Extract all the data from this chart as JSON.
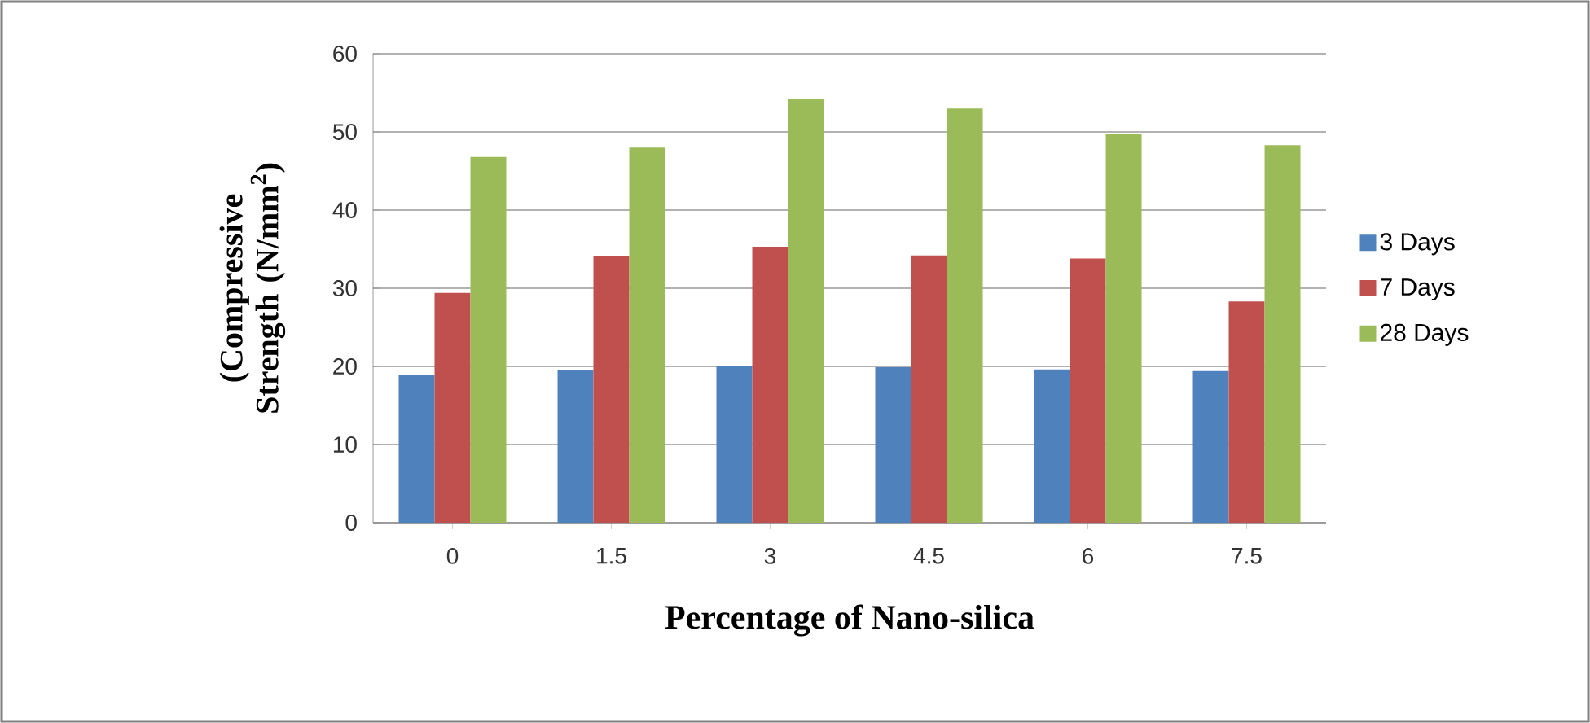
{
  "chart_data": {
    "type": "bar",
    "xlabel": "Percentage of Nano-silica",
    "ylabel": "(Compressive Strength (N/mm$^{2}$)",
    "categories": [
      "0",
      "1.5",
      "3",
      "4.5",
      "6",
      "7.5"
    ],
    "series": [
      {
        "name": "3 Days",
        "color": "#4f81bd",
        "values": [
          18.9,
          19.5,
          20.1,
          19.9,
          19.6,
          19.4
        ]
      },
      {
        "name": "7 Days",
        "color": "#c0504d",
        "values": [
          29.4,
          34.1,
          35.3,
          34.2,
          33.8,
          28.3
        ]
      },
      {
        "name": "28 Days",
        "color": "#9bbb59",
        "values": [
          46.8,
          48.0,
          54.2,
          53.0,
          49.7,
          48.3
        ]
      }
    ],
    "ylim": [
      0,
      60
    ],
    "yticks": [
      0,
      10,
      20,
      30,
      40,
      50,
      60
    ],
    "grid": "y",
    "legend": "right"
  }
}
